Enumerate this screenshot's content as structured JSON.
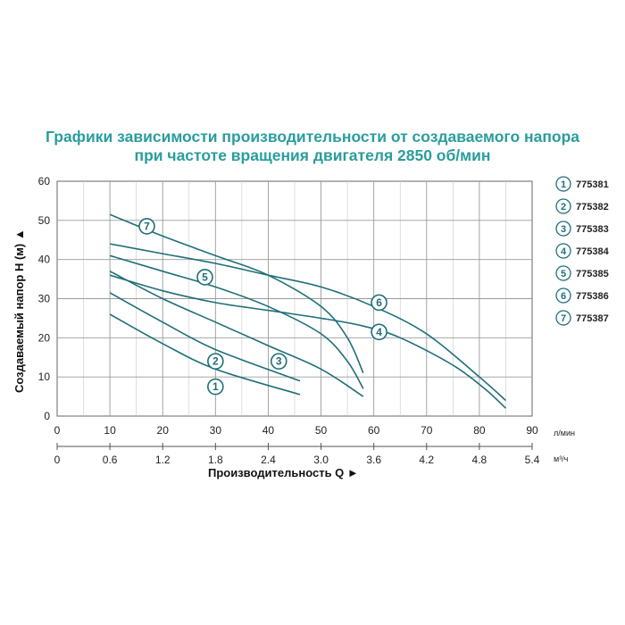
{
  "chart_data": {
    "type": "line",
    "title": "Графики зависимости производительности от создаваемого напора",
    "subtitle": "при частоте вращения двигателя 2850 об/мин",
    "ylabel": "Создаваемый напор H (м) ▲",
    "xlabel": "Производительность Q ►",
    "x_unit_lpm": "л/мин",
    "x_unit_m3h": "м³/ч",
    "xlim": [
      0,
      90
    ],
    "ylim": [
      0,
      60
    ],
    "x_ticks_lpm": [
      "0",
      "10",
      "20",
      "30",
      "40",
      "50",
      "60",
      "70",
      "80",
      "90"
    ],
    "x_ticks_m3h": [
      "0",
      "0.6",
      "1.2",
      "1.8",
      "2.4",
      "3.0",
      "3.6",
      "4.2",
      "4.8",
      "5.4"
    ],
    "y_ticks": [
      "0",
      "10",
      "20",
      "30",
      "40",
      "50",
      "60"
    ],
    "grid": true,
    "legend_position": "right",
    "series": [
      {
        "name": "775381",
        "marker": "1",
        "label_at": [
          30,
          7.5
        ],
        "points": [
          [
            10,
            26
          ],
          [
            20,
            18.5
          ],
          [
            30,
            12
          ],
          [
            46,
            5.5
          ]
        ]
      },
      {
        "name": "775382",
        "marker": "2",
        "label_at": [
          30,
          14
        ],
        "points": [
          [
            10,
            31.5
          ],
          [
            20,
            24
          ],
          [
            30,
            17
          ],
          [
            46,
            9
          ]
        ]
      },
      {
        "name": "775383",
        "marker": "3",
        "label_at": [
          42,
          14
        ],
        "points": [
          [
            10,
            37
          ],
          [
            20,
            30
          ],
          [
            30,
            24
          ],
          [
            40,
            18
          ],
          [
            50,
            12
          ],
          [
            58,
            5
          ]
        ]
      },
      {
        "name": "775384",
        "marker": "4",
        "label_at": [
          61,
          21.5
        ],
        "points": [
          [
            10,
            36
          ],
          [
            20,
            32
          ],
          [
            30,
            29
          ],
          [
            40,
            27
          ],
          [
            50,
            25
          ],
          [
            58,
            23
          ],
          [
            65,
            20
          ],
          [
            75,
            13
          ],
          [
            81,
            7
          ],
          [
            85,
            2
          ]
        ]
      },
      {
        "name": "775385",
        "marker": "5",
        "label_at": [
          28,
          35.5
        ],
        "points": [
          [
            10,
            41
          ],
          [
            20,
            37
          ],
          [
            30,
            33
          ],
          [
            40,
            28
          ],
          [
            50,
            21
          ],
          [
            55,
            14
          ],
          [
            58,
            7
          ]
        ]
      },
      {
        "name": "775386",
        "marker": "6",
        "label_at": [
          61,
          29
        ],
        "points": [
          [
            10,
            44
          ],
          [
            20,
            41.5
          ],
          [
            30,
            39
          ],
          [
            40,
            36
          ],
          [
            50,
            33
          ],
          [
            60,
            28
          ],
          [
            70,
            21
          ],
          [
            80,
            10
          ],
          [
            85,
            4
          ]
        ]
      },
      {
        "name": "775387",
        "marker": "7",
        "label_at": [
          17,
          48.5
        ],
        "points": [
          [
            10,
            51.5
          ],
          [
            20,
            46
          ],
          [
            30,
            41
          ],
          [
            40,
            36
          ],
          [
            50,
            28
          ],
          [
            55,
            20
          ],
          [
            58,
            11
          ]
        ]
      }
    ]
  }
}
